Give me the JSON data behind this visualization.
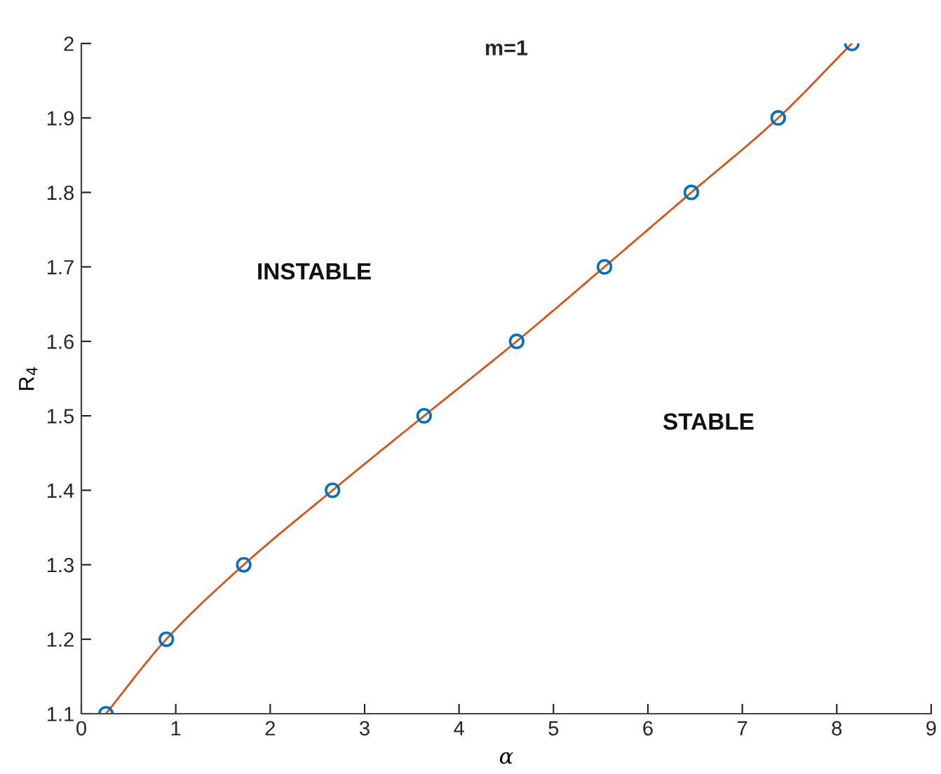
{
  "chart_data": {
    "type": "line",
    "title": "m=1",
    "xlabel": "α",
    "ylabel": "R$_{4}$",
    "x": [
      0.26,
      0.9,
      1.72,
      2.66,
      3.63,
      4.61,
      5.54,
      6.46,
      7.38,
      8.16
    ],
    "series": [
      {
        "color": "#d95319",
        "values": [
          1.1,
          1.2,
          1.3,
          1.4,
          1.5,
          1.6,
          1.7,
          1.8,
          1.9,
          2.0
        ],
        "marker": "none"
      },
      {
        "type": "scatter",
        "color": "#0072bd",
        "values": [
          1.1,
          1.2,
          1.3,
          1.4,
          1.5,
          1.6,
          1.7,
          1.8,
          1.9,
          2.0
        ],
        "marker": "circle"
      }
    ],
    "annotations": [
      "INSTABLE",
      "STABLE"
    ],
    "xlim": [
      0,
      9
    ],
    "ylim": [
      1.1,
      2
    ],
    "xticks": [
      0,
      1,
      2,
      3,
      4,
      5,
      6,
      7,
      8,
      9
    ],
    "yticks": [
      1.1,
      1.2,
      1.3,
      1.4,
      1.5,
      1.6,
      1.7,
      1.8,
      1.9,
      2
    ],
    "grid": false,
    "legend": false
  }
}
